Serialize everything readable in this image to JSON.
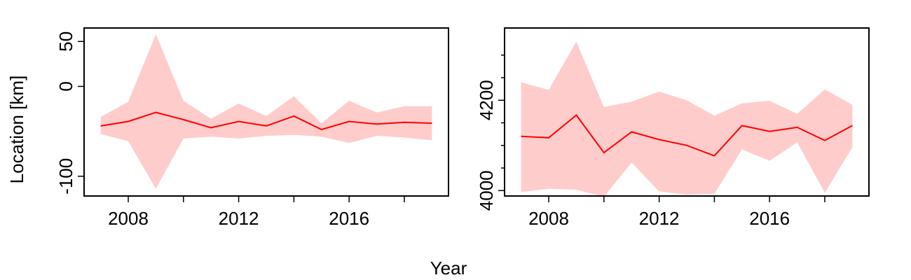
{
  "figure": {
    "ylabel": "Location [km]",
    "xlabel": "Year",
    "band_color": "#ffcccc",
    "line_color": "#ff0000"
  },
  "chart_data": [
    {
      "type": "area",
      "title": "",
      "xlabel": "Year",
      "ylabel": "Location [km]",
      "xlim": [
        2006.4,
        2019.6
      ],
      "ylim": [
        -122,
        65
      ],
      "grid": false,
      "legend": "none",
      "x_ticks": [
        2008,
        2010,
        2012,
        2014,
        2016,
        2018
      ],
      "x_tick_labels": [
        "2008",
        "",
        "2012",
        "",
        "2016",
        ""
      ],
      "y_ticks": [
        50,
        0,
        -100
      ],
      "y_tick_labels": [
        "50",
        "0",
        "-100"
      ],
      "series": [
        {
          "x": [
            2007,
            2008,
            2009,
            2010,
            2011,
            2012,
            2013,
            2014,
            2015,
            2016,
            2017,
            2018,
            2019
          ],
          "y": [
            -44,
            -39,
            -29,
            -37,
            -46,
            -39,
            -44,
            -33,
            -48,
            -39,
            -42,
            -40,
            -41
          ],
          "lower": [
            -53,
            -61,
            -114,
            -58,
            -56,
            -58,
            -55,
            -54,
            -56,
            -63,
            -55,
            -57,
            -60
          ],
          "upper": [
            -34,
            -17,
            58,
            -16,
            -36,
            -19,
            -33,
            -11,
            -41,
            -16,
            -29,
            -22,
            -22
          ]
        }
      ]
    },
    {
      "type": "area",
      "title": "",
      "xlabel": "Year",
      "ylabel": "",
      "xlim": [
        2006.4,
        2019.6
      ],
      "ylim": [
        3988,
        4360
      ],
      "grid": false,
      "legend": "none",
      "x_ticks": [
        2008,
        2010,
        2012,
        2014,
        2016,
        2018
      ],
      "x_tick_labels": [
        "2008",
        "",
        "2012",
        "",
        "2016",
        ""
      ],
      "y_ticks": [
        4000,
        4200
      ],
      "y_tick_labels": [
        "4000",
        "4200"
      ],
      "y_minor_ticks": [
        4050,
        4100,
        4150,
        4250,
        4300
      ],
      "series": [
        {
          "x": [
            2007,
            2008,
            2009,
            2010,
            2011,
            2012,
            2013,
            2014,
            2015,
            2016,
            2017,
            2018,
            2019
          ],
          "y": [
            4120,
            4117,
            4167,
            4084,
            4130,
            4113,
            4100,
            4077,
            4144,
            4131,
            4140,
            4111,
            4144
          ],
          "lower": [
            3997,
            4004,
            4002,
            3986,
            4062,
            3998,
            3991,
            3993,
            4091,
            4066,
            4107,
            3995,
            4096
          ],
          "upper": [
            4240,
            4223,
            4330,
            4185,
            4197,
            4219,
            4200,
            4166,
            4193,
            4199,
            4170,
            4224,
            4190
          ]
        }
      ]
    }
  ]
}
